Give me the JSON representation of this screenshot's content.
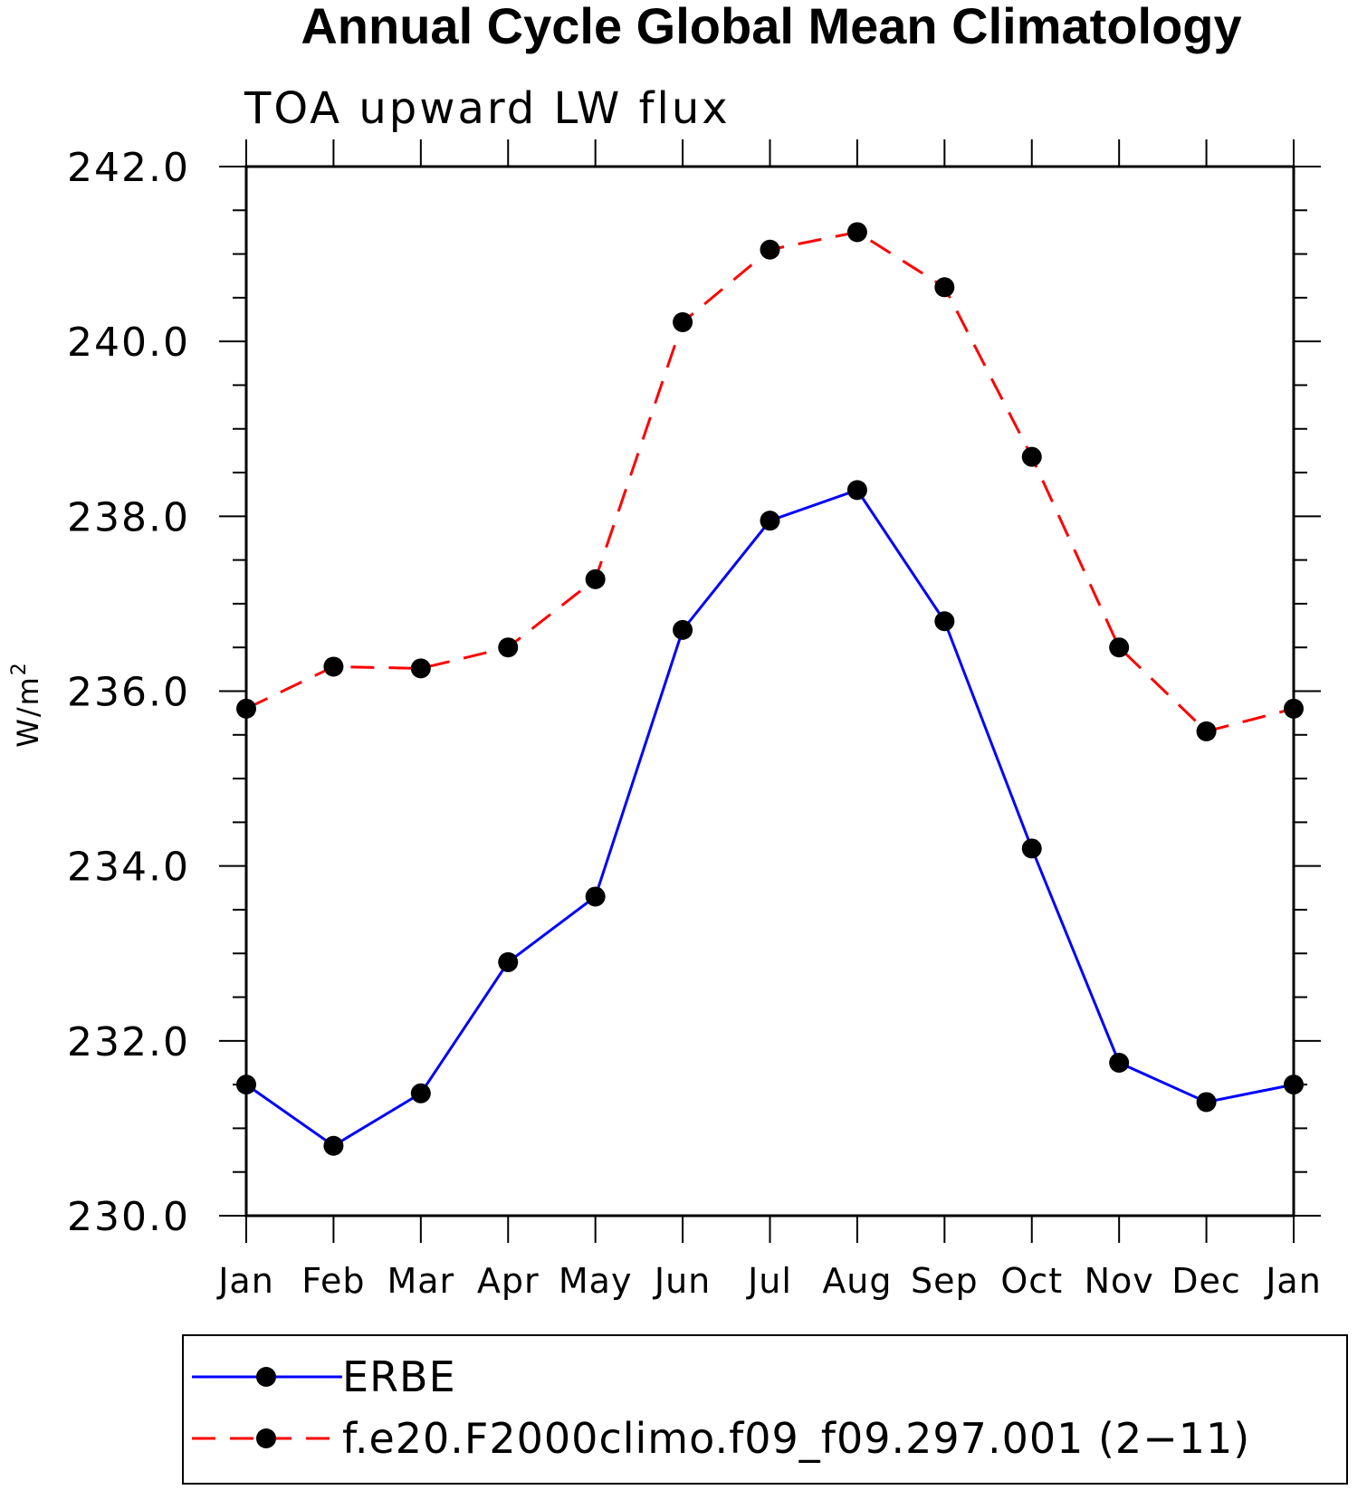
{
  "chart_data": {
    "type": "line",
    "title": "Annual Cycle Global Mean Climatology",
    "subtitle": "TOA upward LW flux",
    "ylabel": "W/m",
    "ylabel_superscript": "2",
    "ylim": [
      230.0,
      242.0
    ],
    "yticks": [
      "230.0",
      "232.0",
      "234.0",
      "236.0",
      "238.0",
      "240.0",
      "242.0"
    ],
    "categories": [
      "Jan",
      "Feb",
      "Mar",
      "Apr",
      "May",
      "Jun",
      "Jul",
      "Aug",
      "Sep",
      "Oct",
      "Nov",
      "Dec",
      "Jan"
    ],
    "series": [
      {
        "name": "ERBE",
        "color": "#0000ff",
        "dash": "solid",
        "values": [
          231.5,
          230.8,
          231.4,
          232.9,
          233.65,
          236.7,
          237.95,
          238.3,
          236.8,
          234.2,
          231.75,
          231.3,
          231.5
        ]
      },
      {
        "name": "f.e20.F2000climo.f09_f09.297.001 (2−11)",
        "color": "#ff0000",
        "dash": "dashed",
        "values": [
          235.8,
          236.28,
          236.26,
          236.5,
          237.28,
          240.22,
          241.05,
          241.25,
          240.62,
          238.68,
          236.5,
          235.54,
          235.8
        ]
      }
    ],
    "grid": false,
    "legend_position": "bottom"
  }
}
